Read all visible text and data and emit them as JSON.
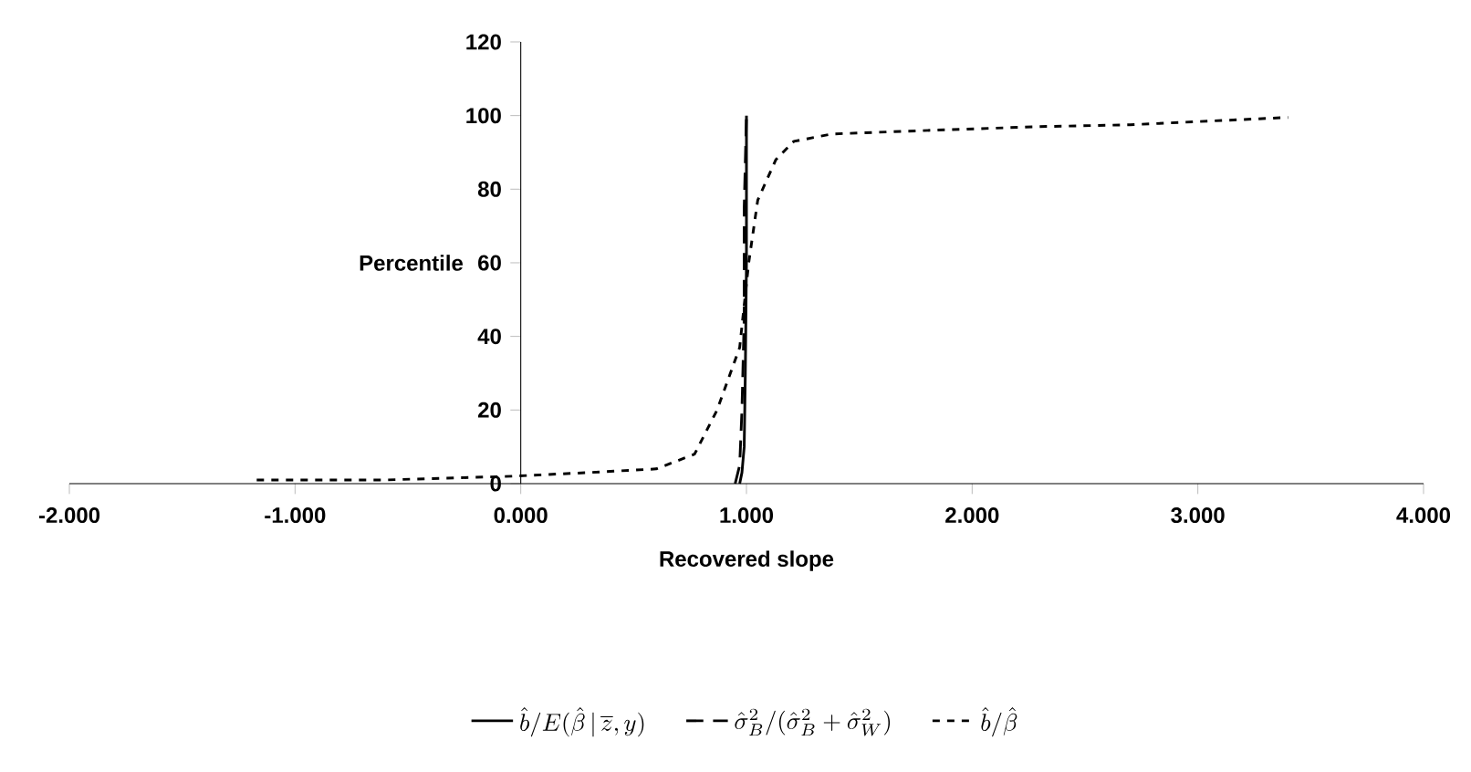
{
  "chart_data": {
    "type": "line",
    "xlabel": "Recovered slope",
    "ylabel": "Percentile",
    "xlim": [
      -2,
      4
    ],
    "ylim": [
      0,
      120
    ],
    "xticks": [
      {
        "value": -2,
        "label": "-2.000"
      },
      {
        "value": -1,
        "label": "-1.000"
      },
      {
        "value": 0,
        "label": "0.000"
      },
      {
        "value": 1,
        "label": "1.000"
      },
      {
        "value": 2,
        "label": "2.000"
      },
      {
        "value": 3,
        "label": "3.000"
      },
      {
        "value": 4,
        "label": "4.000"
      }
    ],
    "yticks": [
      0,
      20,
      40,
      60,
      80,
      100,
      120
    ],
    "legend": "bottom",
    "series": [
      {
        "name": "\\hat{b}/E(\\hat{\\beta}\\,|\\,\\overline{z},y)",
        "color": "#000000",
        "line_style": "solid",
        "x": [
          0.97,
          0.98,
          0.99,
          0.995,
          1.0,
          1.0
        ],
        "values": [
          0,
          3,
          10,
          30,
          60,
          100
        ]
      },
      {
        "name": "\\hat{\\sigma}_B^2/(\\hat{\\sigma}_B^2+\\hat{\\sigma}_W^2)",
        "color": "#000000",
        "line_style": "dashed",
        "x": [
          0.95,
          0.97,
          0.98,
          0.99,
          0.99,
          1.0
        ],
        "values": [
          0,
          5,
          20,
          45,
          75,
          100
        ]
      },
      {
        "name": "\\hat{b}/\\hat{\\beta}",
        "color": "#000000",
        "line_style": "dotted",
        "x": [
          -1.17,
          -0.6,
          -0.04,
          0.3,
          0.6,
          0.77,
          0.87,
          0.97,
          1.01,
          1.05,
          1.13,
          1.21,
          1.38,
          1.82,
          2.3,
          2.7,
          3.4
        ],
        "values": [
          1,
          1,
          2,
          3,
          4,
          8,
          20,
          37,
          60,
          77,
          88,
          93,
          95,
          96,
          97,
          97.5,
          99.5
        ]
      }
    ]
  }
}
